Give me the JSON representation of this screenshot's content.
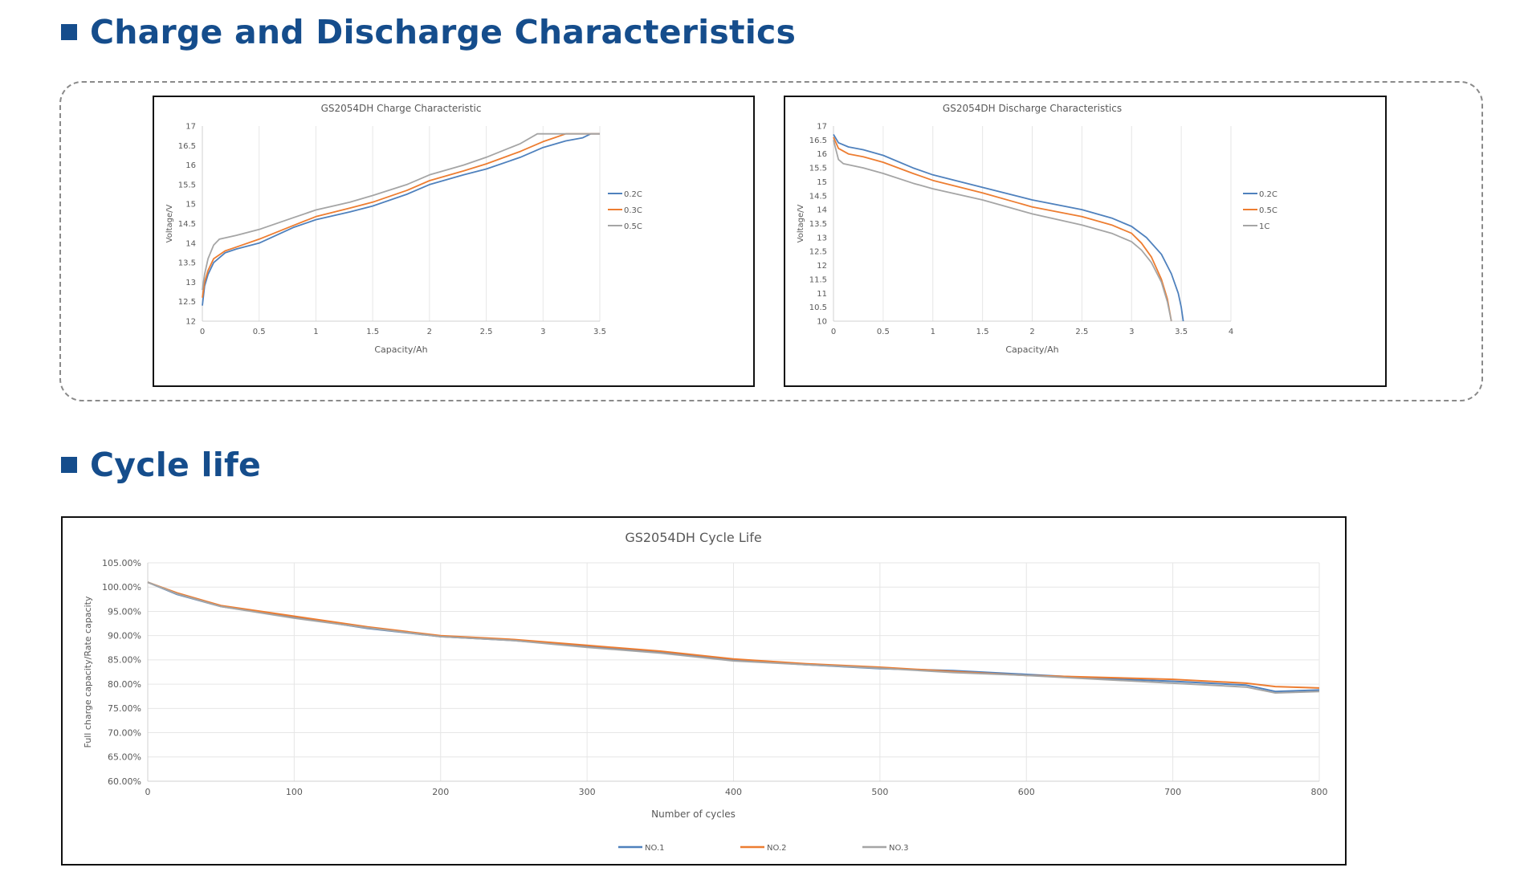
{
  "sections": {
    "charge_title": "Charge and Discharge Characteristics",
    "cycle_title": "Cycle life"
  },
  "colors": {
    "heading": "#154d8c",
    "series_blue": "#4f81bd",
    "series_orange": "#ed7d31",
    "series_gray": "#a5a5a5"
  },
  "chart_data": [
    {
      "id": "charge",
      "type": "line",
      "title": "GS2054DH Charge Characteristic",
      "xlabel": "Capacity/Ah",
      "ylabel": "Voltage/V",
      "xlim": [
        0,
        3.5
      ],
      "ylim": [
        12,
        17
      ],
      "xticks": [
        0,
        0.5,
        1,
        1.5,
        2,
        2.5,
        3,
        3.5
      ],
      "xtick_labels": [
        "0",
        "0.5",
        "1",
        "1.5",
        "2",
        "2.5",
        "3",
        "3.5"
      ],
      "yticks": [
        12,
        12.5,
        13,
        13.5,
        14,
        14.5,
        15,
        15.5,
        16,
        16.5,
        17
      ],
      "ytick_labels": [
        "12",
        "12.5",
        "13",
        "13.5",
        "14",
        "14.5",
        "15",
        "15.5",
        "16",
        "16.5",
        "17"
      ],
      "grid": "vertical",
      "legend": "right",
      "series": [
        {
          "name": "0.2C",
          "color": "#4f81bd",
          "points": [
            [
              0,
              12.4
            ],
            [
              0.02,
              12.9
            ],
            [
              0.05,
              13.2
            ],
            [
              0.1,
              13.5
            ],
            [
              0.2,
              13.75
            ],
            [
              0.3,
              13.85
            ],
            [
              0.5,
              14.0
            ],
            [
              0.8,
              14.4
            ],
            [
              1,
              14.6
            ],
            [
              1.3,
              14.8
            ],
            [
              1.5,
              14.95
            ],
            [
              1.8,
              15.25
            ],
            [
              2,
              15.5
            ],
            [
              2.3,
              15.75
            ],
            [
              2.5,
              15.9
            ],
            [
              2.8,
              16.2
            ],
            [
              3,
              16.45
            ],
            [
              3.2,
              16.62
            ],
            [
              3.35,
              16.7
            ],
            [
              3.42,
              16.8
            ],
            [
              3.5,
              16.8
            ]
          ]
        },
        {
          "name": "0.3C",
          "color": "#ed7d31",
          "points": [
            [
              0,
              12.6
            ],
            [
              0.02,
              13.0
            ],
            [
              0.05,
              13.3
            ],
            [
              0.1,
              13.6
            ],
            [
              0.2,
              13.8
            ],
            [
              0.3,
              13.9
            ],
            [
              0.5,
              14.1
            ],
            [
              0.8,
              14.45
            ],
            [
              1,
              14.68
            ],
            [
              1.3,
              14.9
            ],
            [
              1.5,
              15.05
            ],
            [
              1.8,
              15.35
            ],
            [
              2,
              15.6
            ],
            [
              2.3,
              15.85
            ],
            [
              2.5,
              16.03
            ],
            [
              2.8,
              16.35
            ],
            [
              3,
              16.6
            ],
            [
              3.1,
              16.7
            ],
            [
              3.2,
              16.8
            ],
            [
              3.5,
              16.8
            ]
          ]
        },
        {
          "name": "0.5C",
          "color": "#a5a5a5",
          "points": [
            [
              0,
              12.8
            ],
            [
              0.02,
              13.2
            ],
            [
              0.05,
              13.6
            ],
            [
              0.1,
              13.95
            ],
            [
              0.15,
              14.1
            ],
            [
              0.3,
              14.2
            ],
            [
              0.5,
              14.35
            ],
            [
              0.8,
              14.65
            ],
            [
              1,
              14.85
            ],
            [
              1.3,
              15.05
            ],
            [
              1.5,
              15.22
            ],
            [
              1.8,
              15.5
            ],
            [
              2,
              15.75
            ],
            [
              2.3,
              16.0
            ],
            [
              2.5,
              16.2
            ],
            [
              2.8,
              16.55
            ],
            [
              2.95,
              16.8
            ],
            [
              3.5,
              16.8
            ]
          ]
        }
      ]
    },
    {
      "id": "discharge",
      "type": "line",
      "title": "GS2054DH Discharge Characteristics",
      "xlabel": "Capacity/Ah",
      "ylabel": "Voltage/V",
      "xlim": [
        0,
        4
      ],
      "ylim": [
        10,
        17
      ],
      "xticks": [
        0,
        0.5,
        1,
        1.5,
        2,
        2.5,
        3,
        3.5,
        4
      ],
      "xtick_labels": [
        "0",
        "0.5",
        "1",
        "1.5",
        "2",
        "2.5",
        "3",
        "3.5",
        "4"
      ],
      "yticks": [
        10,
        10.5,
        11,
        11.5,
        12,
        12.5,
        13,
        13.5,
        14,
        14.5,
        15,
        15.5,
        16,
        16.5,
        17
      ],
      "ytick_labels": [
        "10",
        "10.5",
        "11",
        "11.5",
        "12",
        "12.5",
        "13",
        "13.5",
        "14",
        "14.5",
        "15",
        "15.5",
        "16",
        "16.5",
        "17"
      ],
      "grid": "vertical",
      "legend": "right",
      "series": [
        {
          "name": "0.2C",
          "color": "#4f81bd",
          "points": [
            [
              0,
              16.7
            ],
            [
              0.05,
              16.4
            ],
            [
              0.15,
              16.25
            ],
            [
              0.3,
              16.15
            ],
            [
              0.5,
              15.95
            ],
            [
              0.8,
              15.5
            ],
            [
              1,
              15.25
            ],
            [
              1.5,
              14.8
            ],
            [
              2,
              14.35
            ],
            [
              2.5,
              14.0
            ],
            [
              2.8,
              13.7
            ],
            [
              3,
              13.4
            ],
            [
              3.15,
              13.0
            ],
            [
              3.3,
              12.4
            ],
            [
              3.4,
              11.7
            ],
            [
              3.47,
              11.0
            ],
            [
              3.5,
              10.5
            ],
            [
              3.52,
              10.0
            ]
          ]
        },
        {
          "name": "0.5C",
          "color": "#ed7d31",
          "points": [
            [
              0,
              16.6
            ],
            [
              0.05,
              16.2
            ],
            [
              0.15,
              16.0
            ],
            [
              0.3,
              15.9
            ],
            [
              0.5,
              15.7
            ],
            [
              0.8,
              15.3
            ],
            [
              1,
              15.05
            ],
            [
              1.5,
              14.6
            ],
            [
              2,
              14.1
            ],
            [
              2.5,
              13.75
            ],
            [
              2.8,
              13.45
            ],
            [
              3,
              13.15
            ],
            [
              3.1,
              12.8
            ],
            [
              3.2,
              12.3
            ],
            [
              3.3,
              11.5
            ],
            [
              3.36,
              10.8
            ],
            [
              3.4,
              10.0
            ]
          ]
        },
        {
          "name": "1C",
          "color": "#a5a5a5",
          "points": [
            [
              0,
              16.5
            ],
            [
              0.05,
              15.8
            ],
            [
              0.1,
              15.65
            ],
            [
              0.3,
              15.5
            ],
            [
              0.5,
              15.3
            ],
            [
              0.8,
              14.95
            ],
            [
              1,
              14.75
            ],
            [
              1.5,
              14.35
            ],
            [
              2,
              13.85
            ],
            [
              2.5,
              13.45
            ],
            [
              2.8,
              13.15
            ],
            [
              3,
              12.85
            ],
            [
              3.1,
              12.55
            ],
            [
              3.2,
              12.1
            ],
            [
              3.3,
              11.4
            ],
            [
              3.36,
              10.7
            ],
            [
              3.4,
              10.0
            ]
          ]
        }
      ]
    },
    {
      "id": "cycle",
      "type": "line",
      "title": "GS2054DH Cycle Life",
      "xlabel": "Number of cycles",
      "ylabel": "Full charge capacity/Rate capacity",
      "xlim": [
        0,
        800
      ],
      "ylim": [
        60,
        105
      ],
      "xticks": [
        0,
        100,
        200,
        300,
        400,
        500,
        600,
        700,
        800
      ],
      "xtick_labels": [
        "0",
        "100",
        "200",
        "300",
        "400",
        "500",
        "600",
        "700",
        "800"
      ],
      "yticks": [
        60,
        65,
        70,
        75,
        80,
        85,
        90,
        95,
        100,
        105
      ],
      "ytick_labels": [
        "60.00%",
        "65.00%",
        "70.00%",
        "75.00%",
        "80.00%",
        "85.00%",
        "90.00%",
        "95.00%",
        "100.00%",
        "105.00%"
      ],
      "grid": "both",
      "legend": "bottom",
      "series": [
        {
          "name": "NO.1",
          "color": "#4f81bd",
          "points": [
            [
              0,
              101
            ],
            [
              20,
              98.5
            ],
            [
              50,
              96
            ],
            [
              100,
              93.8
            ],
            [
              150,
              91.5
            ],
            [
              200,
              89.8
            ],
            [
              250,
              89
            ],
            [
              300,
              87.8
            ],
            [
              350,
              86.5
            ],
            [
              400,
              85
            ],
            [
              450,
              84
            ],
            [
              500,
              83.2
            ],
            [
              550,
              82.8
            ],
            [
              600,
              82
            ],
            [
              650,
              81.2
            ],
            [
              700,
              80.6
            ],
            [
              750,
              79.8
            ],
            [
              770,
              78.5
            ],
            [
              800,
              78.8
            ]
          ]
        },
        {
          "name": "NO.2",
          "color": "#ed7d31",
          "points": [
            [
              0,
              101
            ],
            [
              20,
              98.8
            ],
            [
              50,
              96.2
            ],
            [
              100,
              94
            ],
            [
              150,
              91.8
            ],
            [
              200,
              90
            ],
            [
              250,
              89.2
            ],
            [
              300,
              88
            ],
            [
              350,
              86.8
            ],
            [
              400,
              85.2
            ],
            [
              450,
              84.2
            ],
            [
              500,
              83.5
            ],
            [
              550,
              82.6
            ],
            [
              600,
              81.8
            ],
            [
              650,
              81.4
            ],
            [
              700,
              81
            ],
            [
              750,
              80.2
            ],
            [
              770,
              79.5
            ],
            [
              800,
              79.2
            ]
          ]
        },
        {
          "name": "NO.3",
          "color": "#a5a5a5",
          "points": [
            [
              0,
              101
            ],
            [
              20,
              98.6
            ],
            [
              50,
              96
            ],
            [
              100,
              93.6
            ],
            [
              150,
              91.6
            ],
            [
              200,
              89.8
            ],
            [
              250,
              89
            ],
            [
              300,
              87.6
            ],
            [
              350,
              86.4
            ],
            [
              400,
              84.8
            ],
            [
              450,
              84
            ],
            [
              500,
              83.3
            ],
            [
              550,
              82.4
            ],
            [
              600,
              81.8
            ],
            [
              650,
              81
            ],
            [
              700,
              80.2
            ],
            [
              750,
              79.4
            ],
            [
              770,
              78.2
            ],
            [
              800,
              78.5
            ]
          ]
        }
      ]
    }
  ]
}
